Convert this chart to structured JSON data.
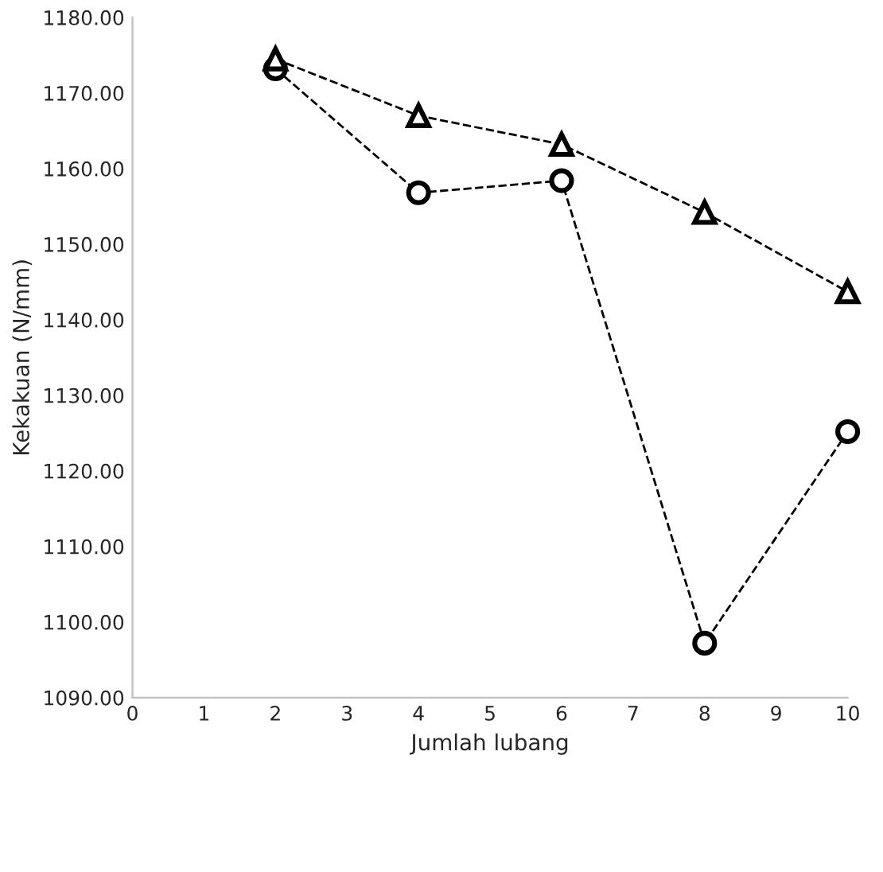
{
  "chart_data": {
    "type": "line",
    "xlabel": "Jumlah lubang",
    "ylabel": "Kekakuan (N/mm)",
    "x": [
      2,
      4,
      6,
      8,
      10
    ],
    "series": [
      {
        "color": "#000000",
        "marker": "triangle",
        "values": [
          1174.5,
          1167.0,
          1163.2,
          1154.2,
          1143.7
        ]
      },
      {
        "color": "#000000",
        "marker": "circle",
        "values": [
          1173.2,
          1156.8,
          1158.4,
          1097.2,
          1125.2
        ]
      }
    ],
    "xlim": [
      0,
      10
    ],
    "xticks": [
      0,
      1,
      2,
      3,
      4,
      5,
      6,
      7,
      8,
      9,
      10
    ],
    "ylim": [
      1090,
      1180
    ],
    "yticks": [
      {
        "value": 1090,
        "label": "1090.00"
      },
      {
        "value": 1100,
        "label": "1100.00"
      },
      {
        "value": 1110,
        "label": "1110.00"
      },
      {
        "value": 1120,
        "label": "1120.00"
      },
      {
        "value": 1130,
        "label": "1130.00"
      },
      {
        "value": 1140,
        "label": "1140.00"
      },
      {
        "value": 1150,
        "label": "1150.00"
      },
      {
        "value": 1160,
        "label": "1160.00"
      },
      {
        "value": 1170,
        "label": "1170.00"
      },
      {
        "value": 1180,
        "label": "1180.00"
      }
    ],
    "line_style": "dashed",
    "grid": false
  }
}
